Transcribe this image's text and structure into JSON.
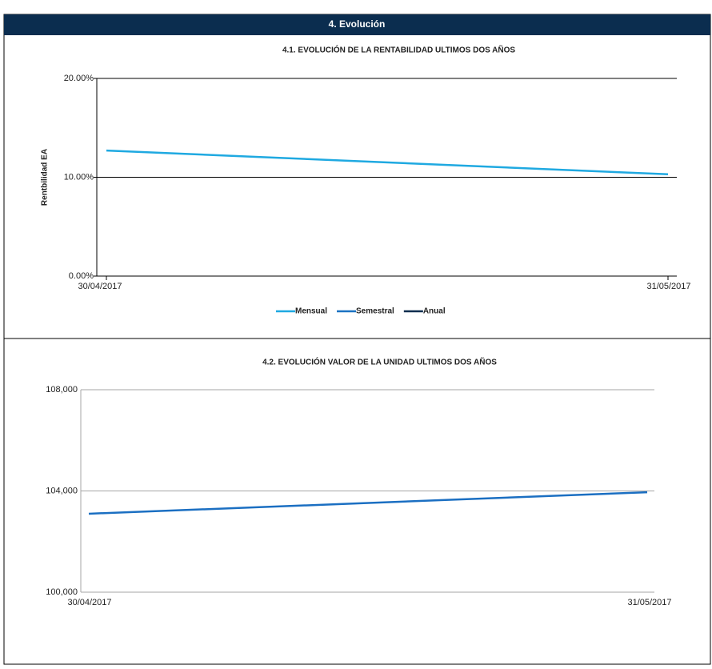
{
  "header": {
    "title": "4. Evolución"
  },
  "chart_data": [
    {
      "type": "line",
      "title": "4.1. EVOLUCIÓN DE LA RENTABILIDAD ULTIMOS DOS AÑOS",
      "y_label": "Rentbilidad EA",
      "categories": [
        "30/04/2017",
        "31/05/2017"
      ],
      "series": [
        {
          "name": "Mensual",
          "color": "#1fa9e1",
          "values": [
            12.7,
            10.3
          ]
        },
        {
          "name": "Semestral",
          "color": "#1b72c2",
          "values": [
            null,
            null
          ]
        },
        {
          "name": "Anual",
          "color": "#0b2d4f",
          "values": [
            null,
            null
          ]
        }
      ],
      "ylim": [
        0,
        20
      ],
      "yticks": [
        {
          "value": 0,
          "label": "0.00%"
        },
        {
          "value": 10,
          "label": "10.00%"
        },
        {
          "value": 20,
          "label": "20.00%"
        }
      ],
      "grid": true,
      "grid_color": "#000000",
      "legend": "bottom"
    },
    {
      "type": "line",
      "title": "4.2. EVOLUCIÓN VALOR DE LA UNIDAD ULTIMOS DOS AÑOS",
      "categories": [
        "30/04/2017",
        "31/05/2017"
      ],
      "values": [
        103100,
        103950
      ],
      "color": "#1b6fc2",
      "ylim": [
        100000,
        108000
      ],
      "yticks": [
        {
          "value": 100000,
          "label": "100,000"
        },
        {
          "value": 104000,
          "label": "104,000"
        },
        {
          "value": 108000,
          "label": "108,000"
        }
      ],
      "grid": true,
      "grid_color": "#a6a6a6"
    }
  ]
}
